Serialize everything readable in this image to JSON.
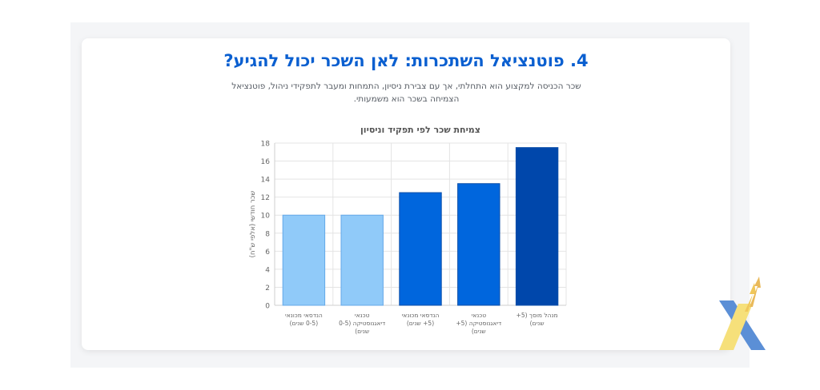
{
  "section": {
    "title": "4. פוטנציאל השתכרות: לאן השכר יכול להגיע?",
    "subtitle": "שכר הכניסה למקצוע הוא התחלתי, אך עם צבירת ניסיון, התמחות ומעבר לתפקידי ניהול, פוטנציאל הצמיחה בשכר הוא משמעותי."
  },
  "chart_data": {
    "type": "bar",
    "title": "צמיחת שכר לפי תפקיד וניסיון",
    "ylabel": "שכר חודשי (אלפי ש\"ח)",
    "xlabel": "",
    "ylim": [
      0,
      18
    ],
    "yticks": [
      0,
      2,
      4,
      6,
      8,
      10,
      12,
      14,
      16,
      18
    ],
    "grid": true,
    "categories": [
      [
        "הנדסאי מכונאי",
        "(0-5 שנים)"
      ],
      [
        "טכנאי",
        "דיאגנוסטיקה (0-5",
        "שנים)"
      ],
      [
        "הנדסאי מכונאי",
        "(5+ שנים)"
      ],
      [
        "טכנאי",
        "דיאגנוסטיקה (5+",
        "שנים)"
      ],
      [
        "מנהל מוסך (5+",
        "שנים)"
      ]
    ],
    "values": [
      10,
      10,
      12.5,
      13.5,
      17.5
    ],
    "colors": [
      "#90caf9",
      "#90caf9",
      "#0066dd",
      "#0066dd",
      "#0047ab"
    ]
  }
}
